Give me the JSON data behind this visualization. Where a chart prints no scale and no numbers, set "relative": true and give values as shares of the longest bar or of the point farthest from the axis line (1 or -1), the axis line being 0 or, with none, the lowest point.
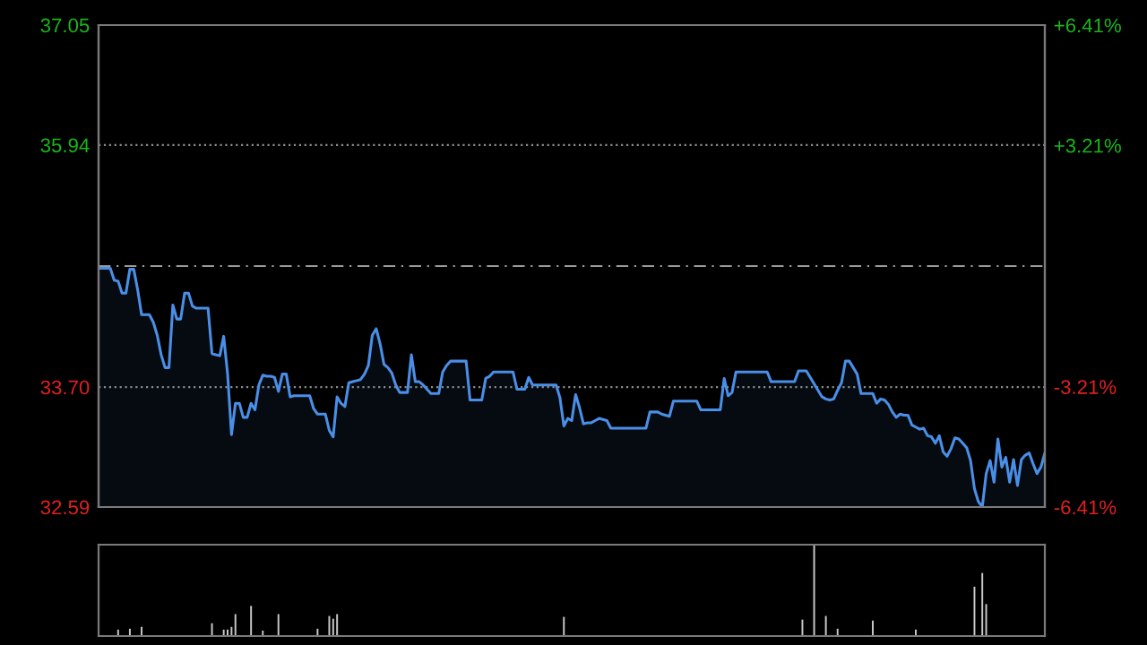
{
  "chart_data": [
    {
      "type": "area",
      "categories": [
        null,
        null,
        null,
        null,
        null,
        null,
        null,
        null,
        null,
        null,
        null,
        null,
        null,
        null,
        null,
        null,
        null,
        null,
        null,
        null,
        null,
        null,
        null,
        null,
        null,
        null,
        null,
        null,
        null,
        null,
        null,
        null,
        null,
        null,
        null,
        null,
        null,
        null,
        null,
        null,
        null,
        null,
        null,
        null,
        null,
        null,
        null,
        null,
        null,
        null,
        null,
        null,
        null,
        null,
        null,
        null,
        null,
        null,
        null,
        null,
        null,
        null,
        null,
        null,
        null,
        null,
        null,
        null,
        null,
        null,
        null,
        null,
        null,
        null,
        null,
        null,
        null,
        null,
        null,
        null,
        null,
        null,
        null,
        null,
        null,
        null,
        null,
        null,
        null,
        null,
        null,
        null,
        null,
        null,
        null,
        null,
        null,
        null,
        null,
        null,
        null,
        null,
        null,
        null,
        null,
        null,
        null,
        null,
        null,
        null,
        null,
        null,
        null,
        null,
        null,
        null,
        null,
        null,
        null,
        null,
        null,
        null,
        null,
        null,
        null,
        null,
        null,
        null,
        null,
        null,
        null,
        null,
        null,
        null,
        null,
        null,
        null,
        null,
        null,
        null,
        null,
        null,
        null,
        null,
        null,
        null,
        null,
        null,
        null,
        null,
        null,
        null,
        null,
        null,
        null,
        null,
        null,
        null,
        null,
        null,
        null,
        null,
        null,
        null,
        null,
        null,
        null,
        null,
        null,
        null,
        null,
        null,
        null,
        null,
        null,
        null,
        null,
        null,
        null,
        null,
        null,
        null,
        null,
        null,
        null,
        null,
        null,
        null,
        null,
        null,
        null,
        null,
        null,
        null,
        null,
        null,
        null,
        null,
        null,
        null,
        null,
        null,
        null,
        null,
        null,
        null,
        null,
        null,
        null,
        null,
        null,
        null,
        null,
        null,
        null,
        null,
        null,
        null,
        null,
        null,
        null,
        null,
        null,
        null,
        null,
        null,
        null,
        null,
        null,
        null,
        null,
        null,
        null,
        null,
        null,
        null,
        null,
        null,
        null,
        null,
        null,
        null,
        null
      ],
      "series": [
        {
          "color": "#4a8fe7",
          "values": [
            34.8,
            34.8,
            34.8,
            34.8,
            34.69,
            34.68,
            34.57,
            34.57,
            34.79,
            34.79,
            34.6,
            34.37,
            34.37,
            34.37,
            34.3,
            34.18,
            34.0,
            33.88,
            33.88,
            34.46,
            34.33,
            34.33,
            34.57,
            34.57,
            34.45,
            34.43,
            34.43,
            34.43,
            34.43,
            34.01,
            34.0,
            33.99,
            34.17,
            33.82,
            33.26,
            33.55,
            33.55,
            33.42,
            33.42,
            33.55,
            33.49,
            33.72,
            33.81,
            33.8,
            33.8,
            33.79,
            33.66,
            33.82,
            33.82,
            33.61,
            33.62,
            33.62,
            33.62,
            33.62,
            33.62,
            33.5,
            33.45,
            33.45,
            33.45,
            33.3,
            33.24,
            33.61,
            33.55,
            33.52,
            33.74,
            33.75,
            33.76,
            33.77,
            33.82,
            33.9,
            34.18,
            34.24,
            34.1,
            33.91,
            33.88,
            33.83,
            33.72,
            33.65,
            33.65,
            33.65,
            34.0,
            33.75,
            33.75,
            33.72,
            33.68,
            33.64,
            33.64,
            33.64,
            33.84,
            33.9,
            33.94,
            33.94,
            33.94,
            33.94,
            33.94,
            33.58,
            33.58,
            33.58,
            33.58,
            33.78,
            33.8,
            33.84,
            33.84,
            33.84,
            33.84,
            33.84,
            33.84,
            33.68,
            33.68,
            33.68,
            33.79,
            33.72,
            33.72,
            33.72,
            33.72,
            33.72,
            33.72,
            33.72,
            33.6,
            33.34,
            33.41,
            33.39,
            33.63,
            33.51,
            33.36,
            33.37,
            33.37,
            33.39,
            33.41,
            33.4,
            33.39,
            33.32,
            33.32,
            33.32,
            33.32,
            33.32,
            33.32,
            33.32,
            33.32,
            33.32,
            33.32,
            33.47,
            33.47,
            33.47,
            33.45,
            33.44,
            33.43,
            33.57,
            33.57,
            33.57,
            33.57,
            33.57,
            33.57,
            33.57,
            33.49,
            33.49,
            33.49,
            33.49,
            33.49,
            33.49,
            33.78,
            33.62,
            33.65,
            33.84,
            33.84,
            33.84,
            33.84,
            33.84,
            33.84,
            33.84,
            33.84,
            33.84,
            33.75,
            33.75,
            33.75,
            33.75,
            33.75,
            33.75,
            33.75,
            33.85,
            33.85,
            33.85,
            33.79,
            33.73,
            33.67,
            33.61,
            33.59,
            33.58,
            33.59,
            33.67,
            33.74,
            33.94,
            33.94,
            33.88,
            33.82,
            33.64,
            33.64,
            33.64,
            33.64,
            33.55,
            33.59,
            33.58,
            33.54,
            33.47,
            33.42,
            33.45,
            33.44,
            33.44,
            33.35,
            33.33,
            33.31,
            33.32,
            33.25,
            33.24,
            33.18,
            33.25,
            33.1,
            33.06,
            33.13,
            33.23,
            33.22,
            33.18,
            33.14,
            33.02,
            32.76,
            32.64,
            32.59,
            32.9,
            33.02,
            32.82,
            33.22,
            32.96,
            33.05,
            32.82,
            33.03,
            32.79,
            33.03,
            33.07,
            33.09,
            32.99,
            32.9,
            32.96,
            33.09
          ]
        }
      ],
      "ylim": [
        32.59,
        37.05
      ],
      "yticks": [
        32.59,
        {
          "value": 33.7,
          "label": "33.70"
        },
        35.94,
        37.05
      ],
      "y2lim": [
        -6.41,
        6.41
      ],
      "y2ticks": [
        {
          "value": -6.41,
          "label": "-6.41%"
        },
        {
          "value": -3.21,
          "label": "-3.21%"
        },
        {
          "value": 3.21,
          "label": "+3.21%"
        },
        {
          "value": 6.41,
          "label": "+6.41%"
        }
      ],
      "ref_lines": [
        {
          "axis": "y",
          "value": 34.82,
          "color": "#9a9a9a",
          "line_style": "dashed"
        }
      ],
      "grid": "y"
    },
    {
      "type": "bar",
      "relative": true,
      "color": "#c8c8c8",
      "categories": [
        null,
        null,
        null,
        null,
        null,
        null,
        null,
        null,
        null,
        null,
        null,
        null,
        null,
        null,
        null,
        null,
        null,
        null,
        null,
        null,
        null,
        null,
        null,
        null,
        null,
        null,
        null,
        null,
        null,
        null,
        null,
        null,
        null,
        null,
        null,
        null,
        null,
        null,
        null,
        null,
        null,
        null,
        null,
        null,
        null,
        null,
        null,
        null,
        null,
        null,
        null,
        null,
        null,
        null,
        null,
        null,
        null,
        null,
        null,
        null,
        null,
        null,
        null,
        null,
        null,
        null,
        null,
        null,
        null,
        null,
        null,
        null,
        null,
        null,
        null,
        null,
        null,
        null,
        null,
        null,
        null,
        null,
        null,
        null,
        null,
        null,
        null,
        null,
        null,
        null,
        null,
        null,
        null,
        null,
        null,
        null,
        null,
        null,
        null,
        null,
        null,
        null,
        null,
        null,
        null,
        null,
        null,
        null,
        null,
        null,
        null,
        null,
        null,
        null,
        null,
        null,
        null,
        null,
        null,
        null,
        null,
        null,
        null,
        null,
        null,
        null,
        null,
        null,
        null,
        null,
        null,
        null,
        null,
        null,
        null,
        null,
        null,
        null,
        null,
        null,
        null,
        null,
        null,
        null,
        null,
        null,
        null,
        null,
        null,
        null,
        null,
        null,
        null,
        null,
        null,
        null,
        null,
        null,
        null,
        null,
        null,
        null,
        null,
        null,
        null,
        null,
        null,
        null,
        null,
        null,
        null,
        null,
        null,
        null,
        null,
        null,
        null,
        null,
        null,
        null,
        null,
        null,
        null,
        null,
        null,
        null,
        null,
        null,
        null,
        null,
        null,
        null,
        null,
        null,
        null,
        null,
        null,
        null,
        null,
        null,
        null,
        null,
        null,
        null,
        null,
        null,
        null,
        null,
        null,
        null,
        null,
        null,
        null,
        null,
        null,
        null,
        null,
        null,
        null,
        null,
        null,
        null,
        null,
        null,
        null,
        null,
        null,
        null,
        null,
        null,
        null,
        null,
        null,
        null,
        null,
        null,
        null,
        null,
        null,
        null,
        null,
        null,
        null
      ],
      "values": [
        0,
        0,
        0,
        0,
        0,
        0.07,
        0,
        0,
        0.08,
        0,
        0,
        0.1,
        0,
        0,
        0,
        0,
        0,
        0,
        0,
        0,
        0,
        0,
        0,
        0,
        0,
        0,
        0,
        0,
        0,
        0.14,
        0,
        0,
        0.07,
        0.07,
        0.1,
        0.24,
        0,
        0,
        0,
        0.33,
        0,
        0,
        0.06,
        0,
        0,
        0,
        0.24,
        0,
        0,
        0,
        0,
        0,
        0,
        0,
        0,
        0,
        0.08,
        0,
        0,
        0.22,
        0.19,
        0.24,
        0,
        0,
        0,
        0,
        0,
        0,
        0,
        0,
        0,
        0,
        0,
        0,
        0,
        0,
        0,
        0,
        0,
        0,
        0,
        0,
        0,
        0,
        0,
        0,
        0,
        0,
        0,
        0,
        0,
        0,
        0,
        0,
        0,
        0,
        0,
        0,
        0,
        0,
        0,
        0,
        0,
        0,
        0,
        0,
        0,
        0,
        0,
        0,
        0,
        0,
        0,
        0,
        0,
        0,
        0,
        0,
        0,
        0.21,
        0,
        0,
        0,
        0,
        0,
        0,
        0,
        0,
        0,
        0,
        0,
        0,
        0,
        0,
        0,
        0,
        0,
        0,
        0,
        0,
        0,
        0,
        0,
        0,
        0,
        0,
        0,
        0,
        0,
        0,
        0,
        0,
        0,
        0,
        0,
        0,
        0,
        0,
        0,
        0,
        0,
        0,
        0,
        0,
        0,
        0,
        0,
        0,
        0,
        0,
        0,
        0,
        0,
        0,
        0,
        0,
        0,
        0,
        0,
        0,
        0.18,
        0,
        0,
        1,
        0,
        0,
        0.22,
        0,
        0,
        0.08,
        0,
        0,
        0,
        0,
        0,
        0,
        0,
        0,
        0.17,
        0,
        0,
        0,
        0,
        0,
        0,
        0,
        0,
        0,
        0,
        0.07,
        0,
        0,
        0,
        0,
        0,
        0,
        0,
        0,
        0,
        0,
        0,
        0,
        0,
        0,
        0.54,
        0,
        0.69,
        0.35,
        0,
        0,
        0,
        0,
        0,
        0,
        0,
        0,
        0,
        0,
        0,
        0,
        0,
        0,
        0
      ]
    }
  ]
}
